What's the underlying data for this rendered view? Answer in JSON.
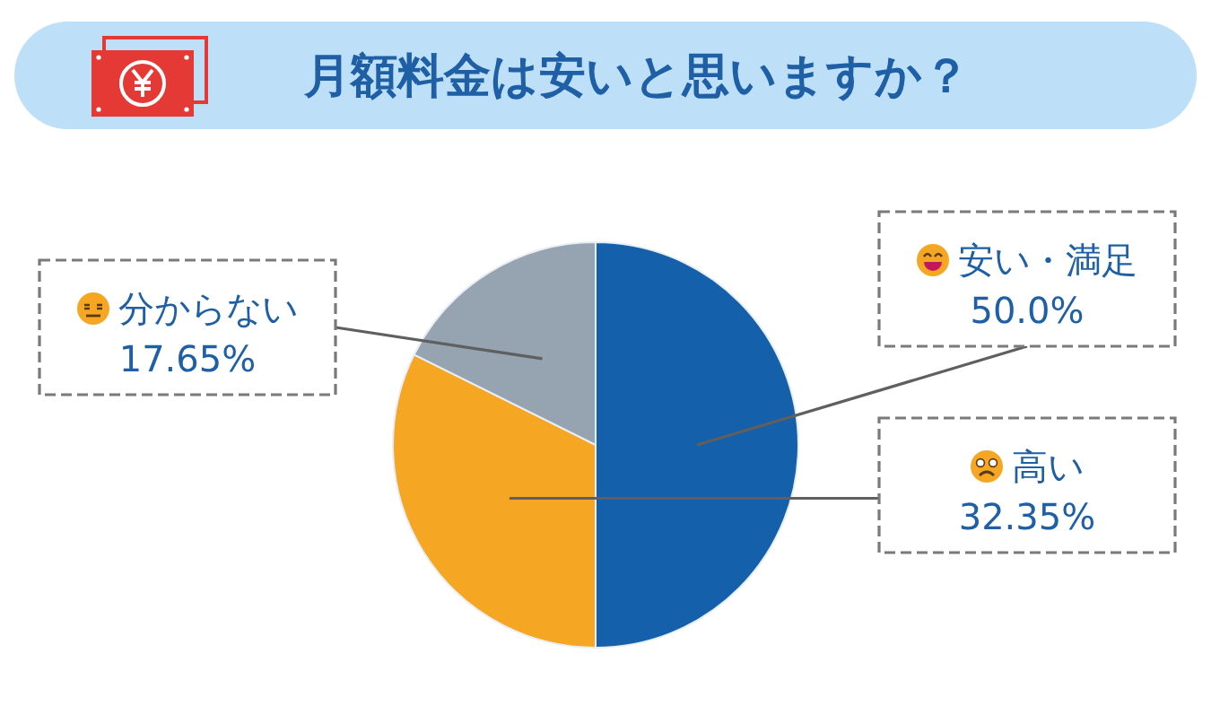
{
  "chart_data": {
    "type": "pie",
    "title": "月額料金は安いと思いますか？",
    "categories": [
      "安い・満足",
      "高い",
      "分からない"
    ],
    "values": [
      50.0,
      32.35,
      17.65
    ],
    "colors": [
      "#1560aa",
      "#f5a623",
      "#96a3b0"
    ],
    "value_labels": [
      "50.0%",
      "32.35%",
      "17.65%"
    ]
  }
}
